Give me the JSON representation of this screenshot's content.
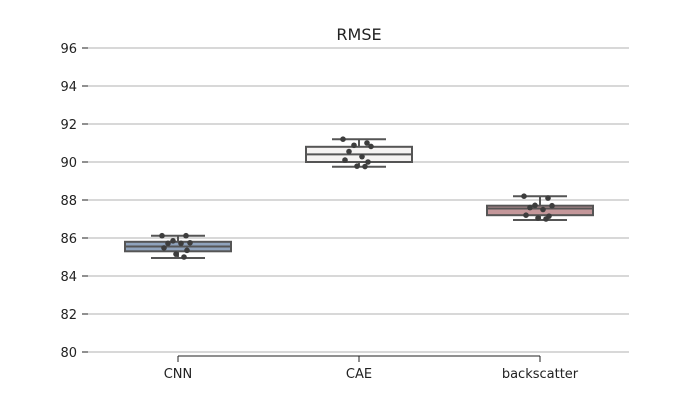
{
  "chart_data": {
    "type": "box",
    "title": "RMSE",
    "xlabel": "",
    "ylabel": "",
    "ylim": [
      80,
      96
    ],
    "yticks": [
      80,
      82,
      84,
      86,
      88,
      90,
      92,
      94,
      96
    ],
    "ytick_labels": [
      "80",
      "82",
      "84",
      "86",
      "88",
      "90",
      "92",
      "94",
      "96"
    ],
    "grid": "horizontal",
    "categories": [
      "CNN",
      "CAE",
      "backscatter"
    ],
    "boxes": [
      {
        "category": "CNN",
        "color": "#8fa3bd",
        "whisker_low": 84.95,
        "q1": 85.3,
        "median": 85.55,
        "q3": 85.8,
        "whisker_high": 86.12,
        "points": [
          86.12,
          86.12,
          85.85,
          85.75,
          85.72,
          85.72,
          85.48,
          85.35,
          85.15,
          85.0
        ]
      },
      {
        "category": "CAE",
        "color": "#f5f3f2",
        "whisker_low": 89.75,
        "q1": 90.0,
        "median": 90.4,
        "q3": 90.8,
        "whisker_high": 91.2,
        "points": [
          91.2,
          91.0,
          90.88,
          90.82,
          90.55,
          90.28,
          90.1,
          90.0,
          89.78,
          89.76
        ]
      },
      {
        "category": "backscatter",
        "color": "#c4979a",
        "whisker_low": 86.95,
        "q1": 87.2,
        "median": 87.55,
        "q3": 87.7,
        "whisker_high": 88.2,
        "points": [
          88.2,
          88.1,
          87.72,
          87.7,
          87.6,
          87.5,
          87.2,
          87.15,
          87.05,
          87.0
        ]
      }
    ]
  }
}
